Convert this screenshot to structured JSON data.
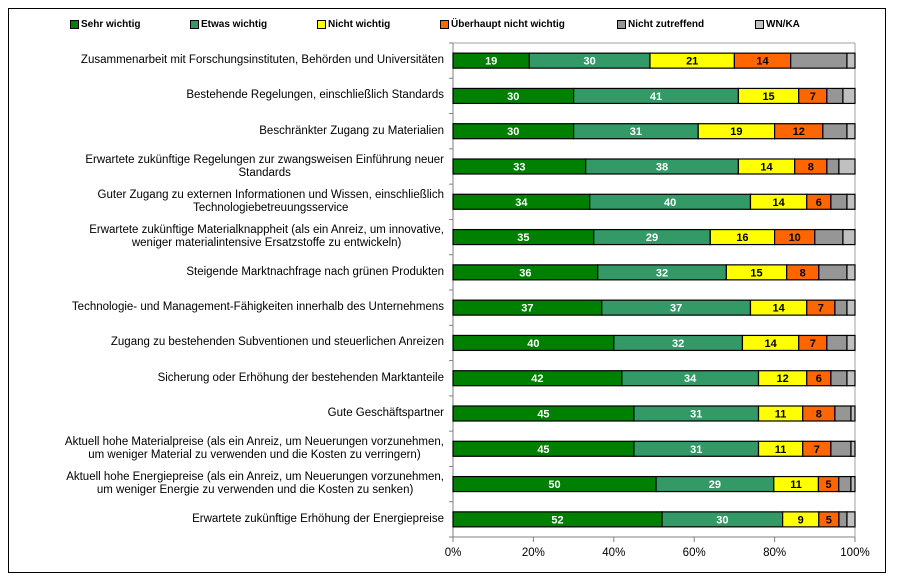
{
  "chart_data": {
    "type": "bar",
    "orientation": "horizontal",
    "stacked": "percent",
    "legend_position": "top",
    "grid": false,
    "xlim": [
      0,
      100
    ],
    "x_ticks": [
      "0%",
      "20%",
      "40%",
      "60%",
      "80%",
      "100%"
    ],
    "categories": [
      "Zusammenarbeit mit Forschungsinstituten, Behörden und Universitäten",
      "Bestehende Regelungen, einschließlich Standards",
      "Beschränkter Zugang zu Materialien",
      "Erwartete zukünftige Regelungen zur zwangsweisen Einführung neuer\nStandards",
      "Guter Zugang zu externen Informationen und Wissen, einschließlich\nTechnologiebetreuungsservice",
      "Erwartete zukünftige Materialknappheit (als ein Anreiz, um innovative,\nweniger materialintensive Ersatzstoffe zu entwickeln)",
      "Steigende Marktnachfrage nach grünen Produkten",
      "Technologie- und Management-Fähigkeiten innerhalb des Unternehmens",
      "Zugang zu bestehenden Subventionen und steuerlichen Anreizen",
      "Sicherung oder Erhöhung der bestehenden Marktanteile",
      "Gute Geschäftspartner",
      "Aktuell hohe Materialpreise (als ein Anreiz, um Neuerungen vorzunehmen,\num weniger Material zu verwenden und die Kosten zu verringern)",
      "Aktuell hohe Energiepreise (als ein Anreiz, um Neuerungen vorzunehmen,\num weniger Energie zu verwenden und die Kosten zu senken)",
      "Erwartete zukünftige Erhöhung der Energiepreise"
    ],
    "series": [
      {
        "name": "Sehr wichtig",
        "color": "#008000",
        "label_color": "#ffffff",
        "labeled": true,
        "values": [
          19,
          30,
          30,
          33,
          34,
          35,
          36,
          37,
          40,
          42,
          45,
          45,
          50,
          52
        ]
      },
      {
        "name": "Etwas wichtig",
        "color": "#339966",
        "label_color": "#ffffff",
        "labeled": true,
        "values": [
          30,
          41,
          31,
          38,
          40,
          29,
          32,
          37,
          32,
          34,
          31,
          31,
          29,
          30
        ]
      },
      {
        "name": "Nicht wichtig",
        "color": "#ffff00",
        "label_color": "#000000",
        "labeled": true,
        "values": [
          21,
          15,
          19,
          14,
          14,
          16,
          15,
          14,
          14,
          12,
          11,
          11,
          11,
          9
        ]
      },
      {
        "name": "Überhaupt nicht wichtig",
        "color": "#ff6600",
        "label_color": "#000000",
        "labeled": true,
        "values": [
          14,
          7,
          12,
          8,
          6,
          10,
          8,
          7,
          7,
          6,
          8,
          7,
          5,
          5
        ]
      },
      {
        "name": "Nicht zutreffend",
        "color": "#969696",
        "label_color": "#000000",
        "labeled": false,
        "values": [
          14,
          4,
          6,
          3,
          4,
          7,
          7,
          3,
          5,
          4,
          4,
          5,
          3,
          2
        ]
      },
      {
        "name": "WN/KA",
        "color": "#c0c0c0",
        "label_color": "#000000",
        "labeled": false,
        "values": [
          2,
          3,
          2,
          4,
          2,
          3,
          2,
          2,
          2,
          2,
          1,
          1,
          1,
          2
        ]
      }
    ]
  }
}
